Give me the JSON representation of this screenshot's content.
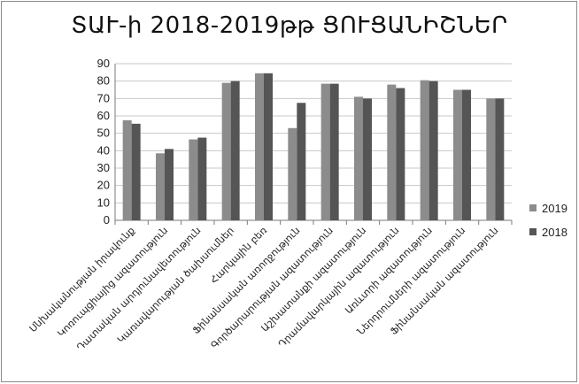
{
  "chart_data": {
    "type": "bar",
    "title": "ՏԱՒ-ի 2018-2019թթ ՑՈՒՑԱՆԻՇՆԵՐ",
    "categories": [
      "Սնխականության իրավունք",
      "Կոռուպցիայից ազատություն",
      "Դատական արդյունավետություն",
      "Կառավարության ծախսումներ",
      "Հարկային բեռ",
      "Ֆինանսական առողջություն",
      "Գործարարության ազատություն",
      "Աշխատանքի ազատություն",
      "Դրամավարկային ազատություն",
      "Առևտրի ազատություն",
      "Ներդրումների ազատություն",
      "Ֆինանսական ազատություն"
    ],
    "series": [
      {
        "name": "2019",
        "color": "#8c8c8c",
        "values": [
          57.5,
          38.5,
          46.5,
          79,
          84.5,
          53,
          78.5,
          71,
          78,
          80.5,
          75,
          70
        ]
      },
      {
        "name": "2018",
        "color": "#555555",
        "values": [
          55.5,
          41,
          47.5,
          80,
          84.5,
          67.5,
          78.5,
          70,
          76,
          80,
          75,
          70
        ]
      }
    ],
    "ylim": [
      0,
      90
    ],
    "yticks": [
      "0",
      "10",
      "20",
      "30",
      "40",
      "50",
      "60",
      "70",
      "80",
      "90"
    ],
    "grid": true,
    "legend": "right"
  }
}
